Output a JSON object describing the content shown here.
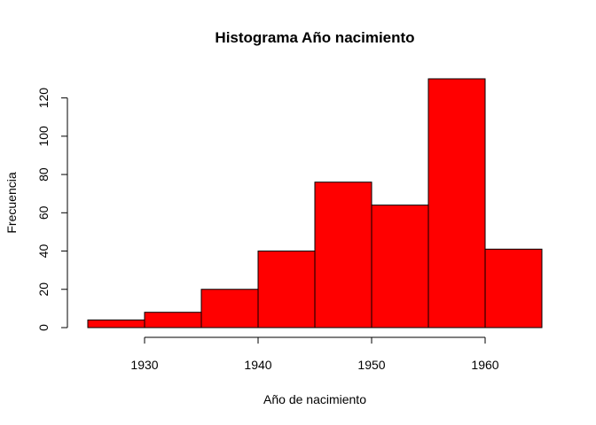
{
  "chart_data": {
    "type": "bar",
    "title": "Histograma Año nacimiento",
    "xlabel": "Año de nacimiento",
    "ylabel": "Frecuencia",
    "bin_edges": [
      1925,
      1930,
      1935,
      1940,
      1945,
      1950,
      1955,
      1960,
      1965
    ],
    "values": [
      4,
      8,
      20,
      40,
      76,
      64,
      130,
      41
    ],
    "x_ticks": [
      1930,
      1940,
      1950,
      1960
    ],
    "y_ticks": [
      0,
      20,
      40,
      60,
      80,
      100,
      120
    ],
    "xlim": [
      1925,
      1965
    ],
    "ylim": [
      0,
      130
    ],
    "bar_color": "#ff0000",
    "grid": false
  }
}
